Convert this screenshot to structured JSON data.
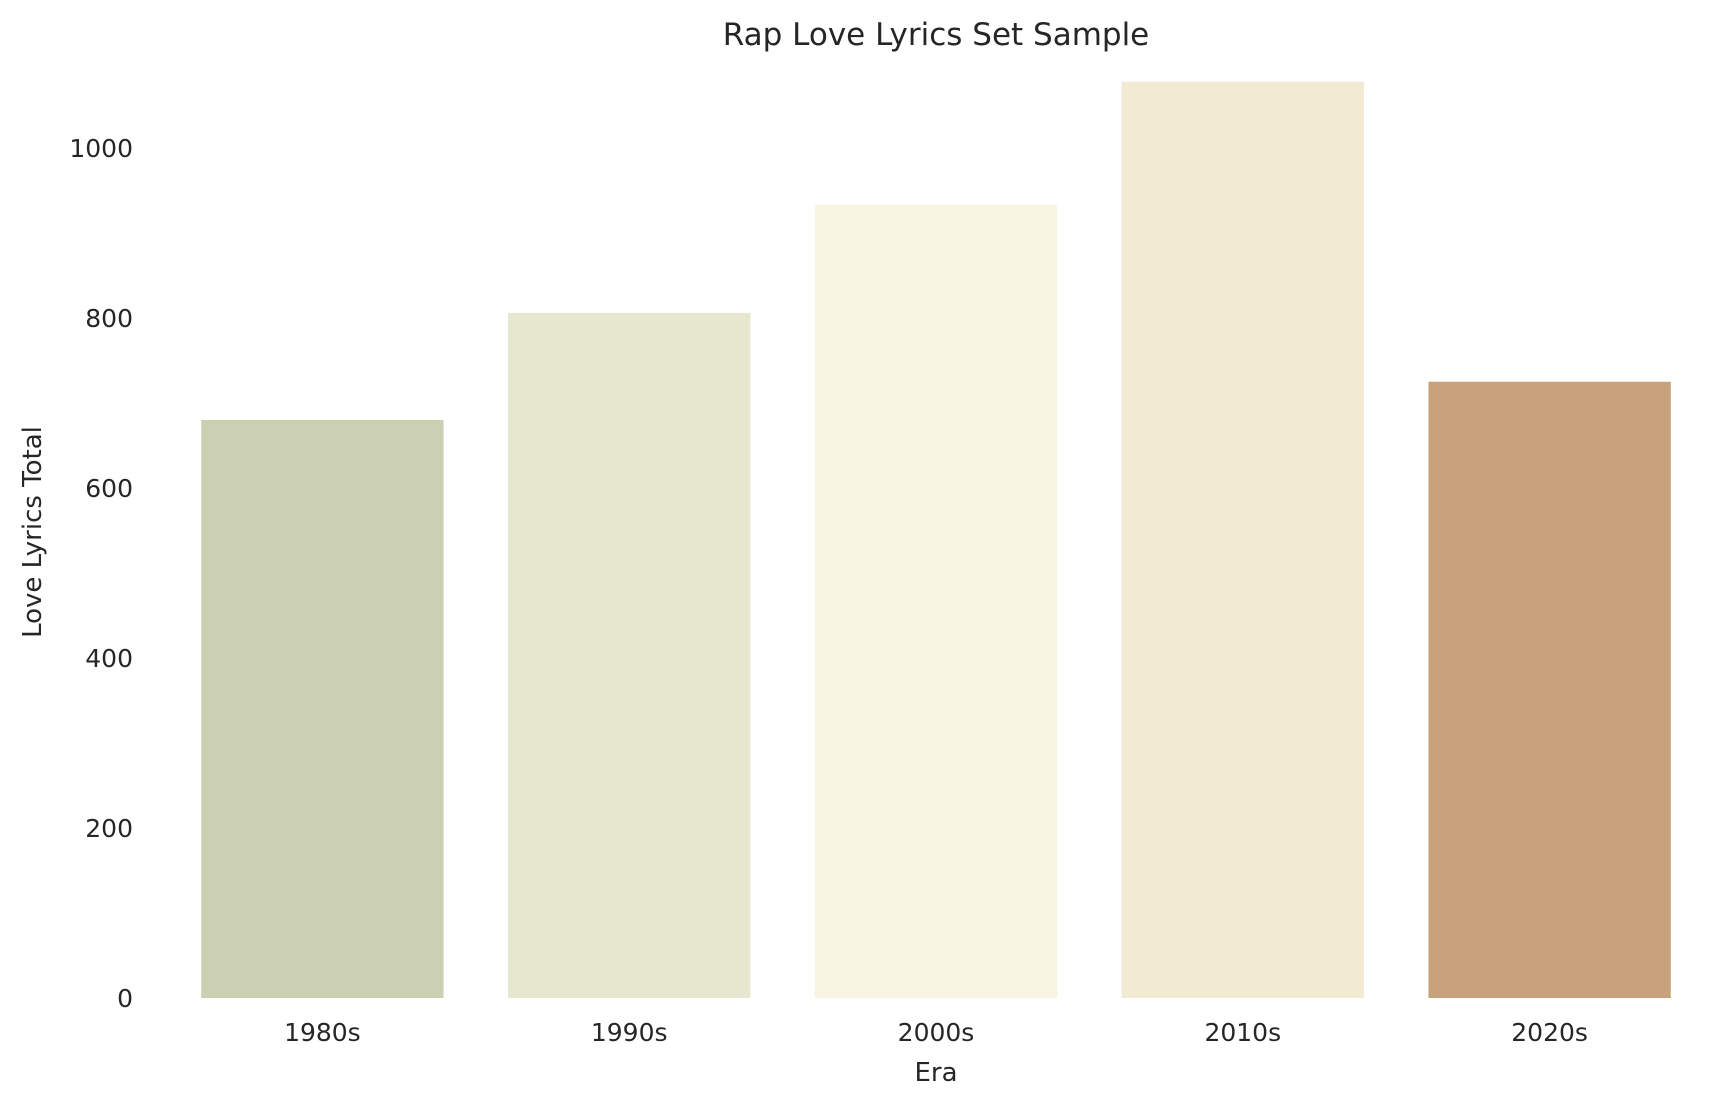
{
  "chart_data": {
    "type": "bar",
    "title": "Rap Love Lyrics Set Sample",
    "xlabel": "Era",
    "ylabel": "Love Lyrics Total",
    "categories": [
      "1980s",
      "1990s",
      "2000s",
      "2010s",
      "2020s"
    ],
    "values": [
      680,
      806,
      933,
      1078,
      725
    ],
    "colors": [
      "#cbd0b2",
      "#e5e8cf",
      "#f9f5e3",
      "#f2ead3",
      "#c7a27d"
    ],
    "ylim": [
      0,
      1080
    ],
    "yticks": [
      0,
      200,
      400,
      600,
      800,
      1000
    ],
    "grid": false,
    "legend": "none"
  }
}
